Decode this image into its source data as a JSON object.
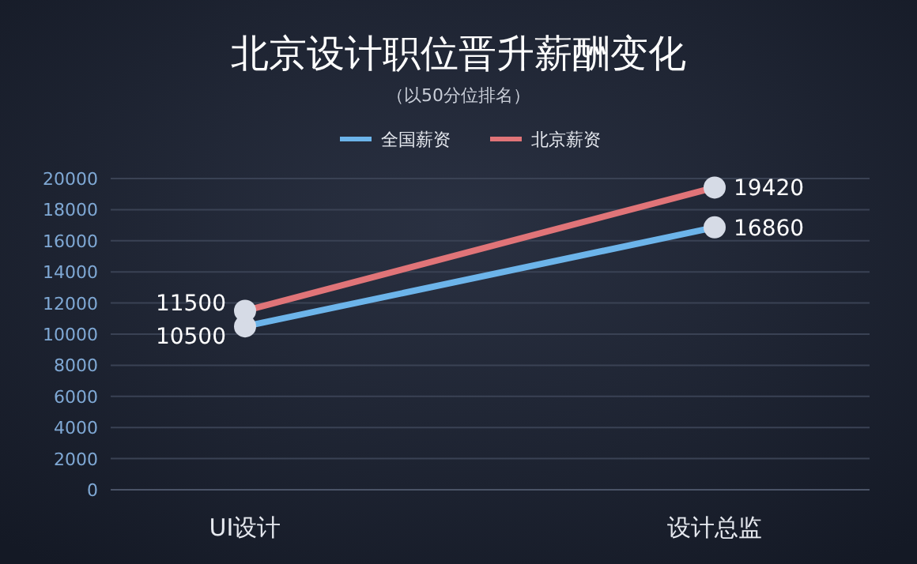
{
  "chart_data": {
    "type": "line",
    "title": "北京设计职位晋升薪酬变化",
    "subtitle": "（以50分位排名）",
    "categories": [
      "UI设计",
      "设计总监"
    ],
    "series": [
      {
        "name": "全国薪资",
        "color": "#6cb4ea",
        "values": [
          10500,
          16860
        ]
      },
      {
        "name": "北京薪资",
        "color": "#e07478",
        "values": [
          11500,
          19420
        ]
      }
    ],
    "ylim": [
      0,
      20000
    ],
    "yticks": [
      0,
      2000,
      4000,
      6000,
      8000,
      10000,
      12000,
      14000,
      16000,
      18000,
      20000
    ],
    "grid": "y",
    "legend": "top",
    "marker": "circle",
    "data_labels": true
  }
}
